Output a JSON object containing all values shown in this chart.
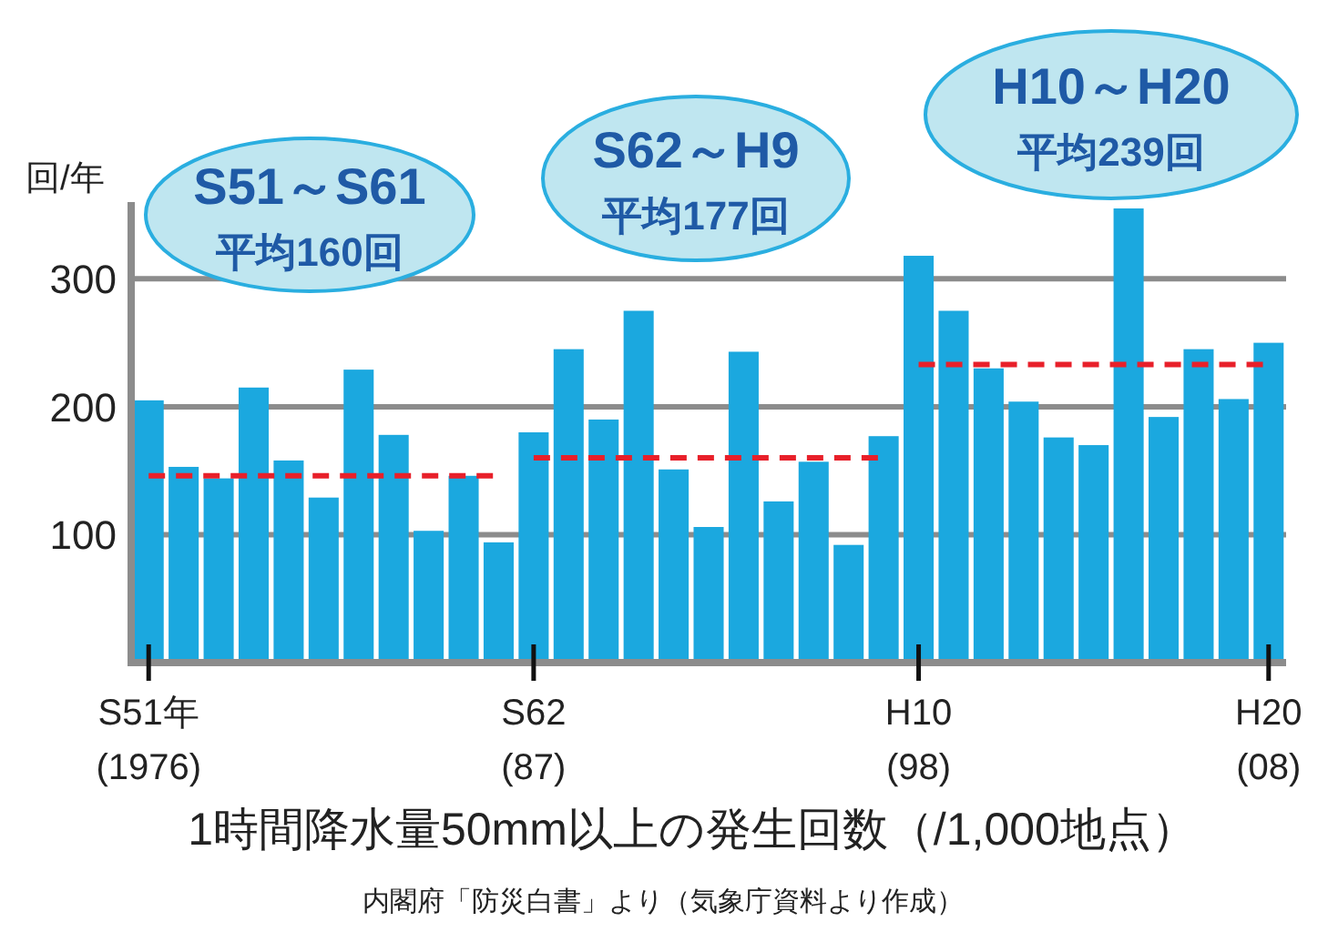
{
  "chart_data": {
    "type": "bar",
    "ylabel": "回/年",
    "xlabel": "1時間降水量50mm以上の発生回数（/1,000地点）",
    "categories": [
      "S51年\n(1976)",
      null,
      null,
      null,
      null,
      null,
      null,
      null,
      null,
      null,
      null,
      "S62\n(87)",
      null,
      null,
      null,
      null,
      null,
      null,
      null,
      null,
      null,
      null,
      "H10\n(98)",
      null,
      null,
      null,
      null,
      null,
      null,
      null,
      null,
      null,
      "H20\n(08)"
    ],
    "series": [
      {
        "color": "#1ba8df",
        "values": [
          205,
          153,
          144,
          215,
          158,
          129,
          229,
          178,
          103,
          146,
          94,
          180,
          245,
          190,
          275,
          151,
          106,
          243,
          126,
          157,
          92,
          177,
          318,
          275,
          230,
          204,
          176,
          170,
          355,
          192,
          245,
          206,
          250
        ]
      },
      {
        "type": "line",
        "color": "#e8202a",
        "line_style": "dashed",
        "values": [
          146,
          146,
          146,
          146,
          146,
          146,
          146,
          146,
          146,
          146,
          146,
          null,
          null,
          null,
          null,
          null,
          null,
          null,
          null,
          null,
          null,
          null,
          null,
          null,
          null,
          null,
          null,
          null,
          null,
          null,
          null,
          null,
          null
        ]
      },
      {
        "type": "line",
        "color": "#e8202a",
        "line_style": "dashed",
        "values": [
          null,
          null,
          null,
          null,
          null,
          null,
          null,
          null,
          null,
          null,
          null,
          160,
          160,
          160,
          160,
          160,
          160,
          160,
          160,
          160,
          160,
          160,
          null,
          null,
          null,
          null,
          null,
          null,
          null,
          null,
          null,
          null,
          null
        ]
      },
      {
        "type": "line",
        "color": "#e8202a",
        "line_style": "dashed",
        "values": [
          null,
          null,
          null,
          null,
          null,
          null,
          null,
          null,
          null,
          null,
          null,
          null,
          null,
          null,
          null,
          null,
          null,
          null,
          null,
          null,
          null,
          null,
          233,
          233,
          233,
          233,
          233,
          233,
          233,
          233,
          233,
          233,
          233
        ]
      }
    ],
    "ylim": [
      0,
      360
    ],
    "yticks": [
      100,
      200,
      300
    ],
    "grid": "y",
    "annotations": [
      "S51～S61\n平均160回",
      "S62～H9\n平均177回",
      "H10～H20\n平均239回",
      "内閣府「防災白書」より（気象庁資料より作成）"
    ]
  }
}
